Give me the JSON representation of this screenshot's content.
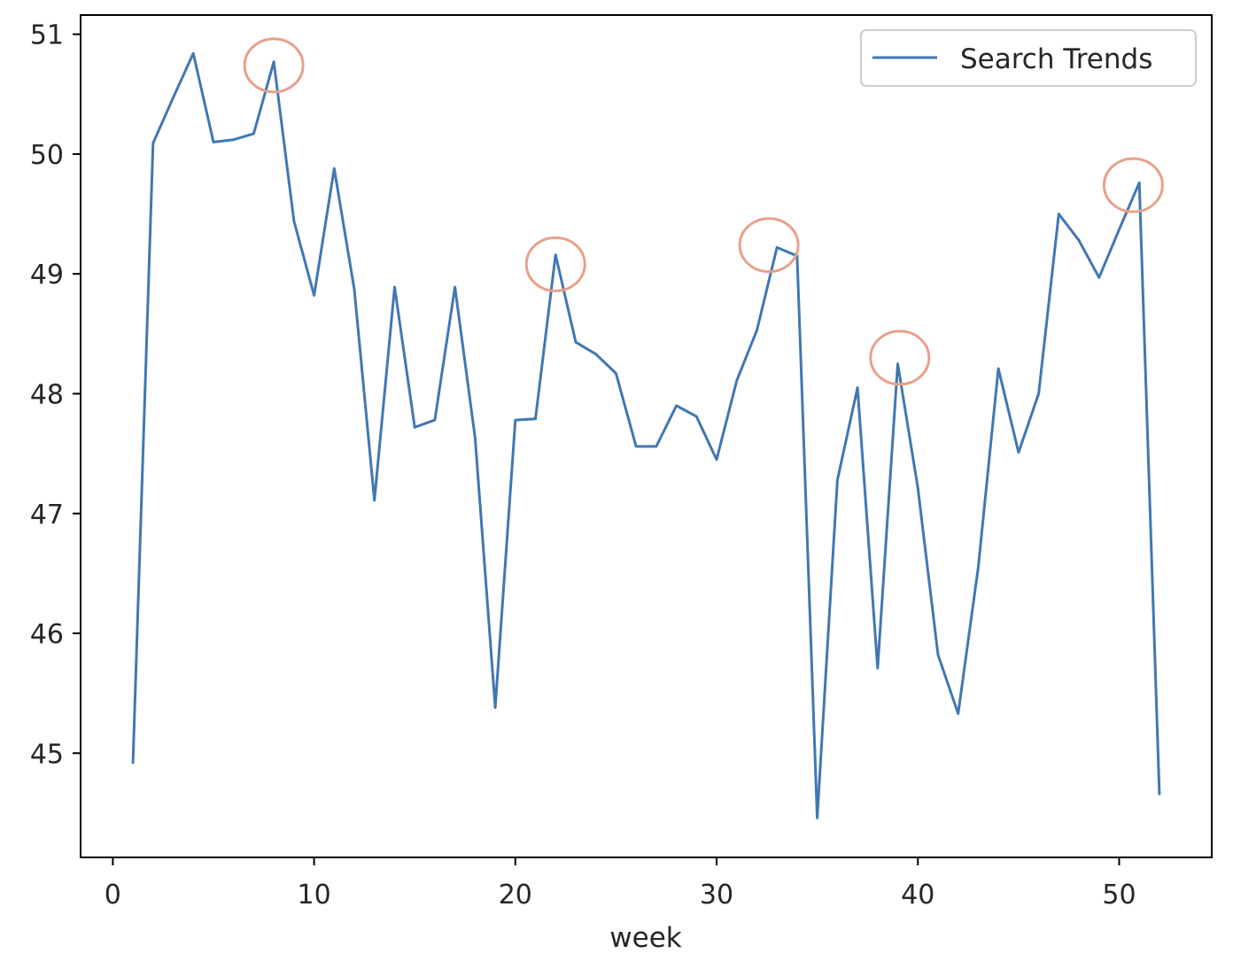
{
  "chart_data": {
    "type": "line",
    "title": "",
    "xlabel": "week",
    "ylabel": "",
    "xlim": [
      -1.6,
      54.6
    ],
    "ylim": [
      44.13,
      51.16
    ],
    "xticks": [
      0,
      10,
      20,
      30,
      40,
      50
    ],
    "yticks": [
      45,
      46,
      47,
      48,
      49,
      50,
      51
    ],
    "grid": false,
    "legend": {
      "position": "upper right"
    },
    "series": [
      {
        "name": "Search Trends",
        "color": "#4077b4",
        "x": [
          1,
          2,
          3,
          4,
          5,
          6,
          7,
          8,
          9,
          10,
          11,
          12,
          13,
          14,
          15,
          16,
          17,
          18,
          19,
          20,
          21,
          22,
          23,
          24,
          25,
          26,
          27,
          28,
          29,
          30,
          31,
          32,
          33,
          34,
          35,
          36,
          37,
          38,
          39,
          40,
          41,
          42,
          43,
          44,
          45,
          46,
          47,
          48,
          49,
          50,
          51,
          52
        ],
        "y": [
          44.92,
          50.09,
          50.47,
          50.84,
          50.1,
          50.12,
          50.17,
          50.77,
          49.44,
          48.82,
          49.88,
          48.87,
          47.11,
          48.89,
          47.72,
          47.78,
          48.89,
          47.63,
          45.38,
          47.78,
          47.79,
          49.16,
          48.43,
          48.33,
          48.17,
          47.56,
          47.56,
          47.9,
          47.81,
          47.45,
          48.11,
          48.53,
          49.22,
          49.15,
          44.46,
          47.28,
          48.05,
          45.71,
          48.25,
          47.21,
          45.82,
          45.33,
          46.55,
          48.21,
          47.51,
          48.0,
          49.5,
          49.28,
          48.97,
          49.37,
          49.76,
          44.66
        ]
      }
    ],
    "annotations": [
      {
        "type": "circle",
        "color": "#e8a08a",
        "x": 8.0,
        "y": 50.74
      },
      {
        "type": "circle",
        "color": "#e8a08a",
        "x": 22.0,
        "y": 49.08
      },
      {
        "type": "circle",
        "color": "#e8a08a",
        "x": 32.6,
        "y": 49.24
      },
      {
        "type": "circle",
        "color": "#e8a08a",
        "x": 39.1,
        "y": 48.3
      },
      {
        "type": "circle",
        "color": "#e8a08a",
        "x": 50.7,
        "y": 49.74
      }
    ]
  }
}
